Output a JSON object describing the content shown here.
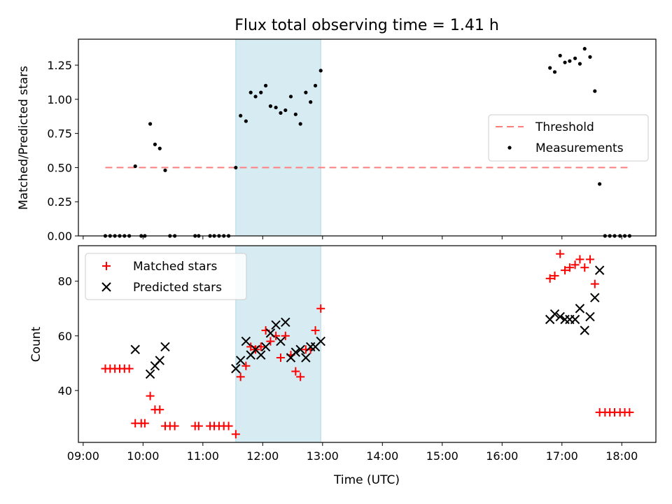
{
  "chart_data": [
    {
      "type": "scatter",
      "title": "Flux total observing time = 1.41 h",
      "xlabel": "",
      "ylabel": "Matched/Predicted stars",
      "ylim": [
        0,
        1.44
      ],
      "yticks": [
        "0.00",
        "0.25",
        "0.50",
        "0.75",
        "1.00",
        "1.25"
      ],
      "ytick_values": [
        0,
        0.25,
        0.5,
        0.75,
        1.0,
        1.25
      ],
      "shaded_span_hours": [
        11.55,
        12.97
      ],
      "threshold": {
        "name": "Threshold",
        "y": 0.5,
        "x": [
          9.37,
          18.15
        ],
        "color": "#ff7f7f"
      },
      "measurements": {
        "name": "Measurements",
        "color": "#000000",
        "x": [
          9.37,
          9.45,
          9.53,
          9.61,
          9.69,
          9.77,
          9.87,
          9.97,
          10.03,
          10.12,
          10.2,
          10.28,
          10.37,
          10.45,
          10.53,
          10.87,
          10.93,
          11.12,
          11.19,
          11.27,
          11.35,
          11.43,
          11.55,
          11.63,
          11.72,
          11.8,
          11.88,
          11.97,
          12.05,
          12.13,
          12.22,
          12.3,
          12.38,
          12.47,
          12.55,
          12.63,
          12.72,
          12.8,
          12.88,
          12.97,
          16.8,
          16.88,
          16.97,
          17.05,
          17.13,
          17.22,
          17.3,
          17.38,
          17.47,
          17.55,
          17.63,
          17.72,
          17.8,
          17.88,
          17.97,
          18.05,
          18.13
        ],
        "y": [
          0,
          0,
          0,
          0,
          0,
          0,
          0.51,
          0,
          0,
          0.82,
          0.67,
          0.64,
          0.48,
          0,
          0,
          0,
          0,
          0,
          0,
          0,
          0,
          0,
          0.5,
          0.88,
          0.84,
          1.05,
          1.02,
          1.05,
          1.1,
          0.95,
          0.94,
          0.9,
          0.92,
          1.02,
          0.89,
          0.82,
          1.05,
          0.98,
          1.1,
          1.21,
          1.23,
          1.2,
          1.32,
          1.27,
          1.28,
          1.3,
          1.26,
          1.37,
          1.31,
          1.06,
          0.38,
          0,
          0,
          0,
          0,
          0,
          0
        ]
      },
      "legend": {
        "placement": "center-right",
        "entries": [
          "Threshold",
          "Measurements"
        ]
      }
    },
    {
      "type": "scatter",
      "title": "",
      "xlabel": "Time (UTC)",
      "ylabel": "Count",
      "ylim": [
        21,
        93
      ],
      "yticks": [
        "40",
        "60",
        "80"
      ],
      "ytick_values": [
        40,
        60,
        80
      ],
      "xlim": [
        8.92,
        18.57
      ],
      "xticks": [
        "09:00",
        "10:00",
        "11:00",
        "12:00",
        "13:00",
        "14:00",
        "15:00",
        "16:00",
        "17:00",
        "18:00"
      ],
      "xtick_values": [
        9,
        10,
        11,
        12,
        13,
        14,
        15,
        16,
        17,
        18
      ],
      "shaded_span_hours": [
        11.55,
        12.97
      ],
      "series": [
        {
          "name": "Matched stars",
          "marker": "+",
          "color": "#ff0000",
          "x": [
            9.37,
            9.45,
            9.53,
            9.61,
            9.69,
            9.77,
            9.87,
            9.97,
            10.03,
            10.12,
            10.2,
            10.28,
            10.37,
            10.45,
            10.53,
            10.87,
            10.93,
            11.12,
            11.19,
            11.27,
            11.35,
            11.43,
            11.55,
            11.63,
            11.72,
            11.8,
            11.88,
            11.97,
            12.05,
            12.13,
            12.22,
            12.3,
            12.38,
            12.47,
            12.55,
            12.63,
            12.72,
            12.8,
            12.88,
            12.97,
            16.8,
            16.88,
            16.97,
            17.05,
            17.13,
            17.22,
            17.3,
            17.38,
            17.47,
            17.55,
            17.63,
            17.72,
            17.8,
            17.88,
            17.97,
            18.05,
            18.13
          ],
          "y": [
            48,
            48,
            48,
            48,
            48,
            48,
            28,
            28,
            28,
            38,
            33,
            33,
            27,
            27,
            27,
            27,
            27,
            27,
            27,
            27,
            27,
            27,
            24,
            45,
            49,
            56,
            55,
            56,
            62,
            58,
            60,
            52,
            60,
            53,
            47,
            45,
            55,
            55,
            62,
            70,
            81,
            82,
            90,
            84,
            85,
            86,
            88,
            85,
            88,
            79,
            32,
            32,
            32,
            32,
            32,
            32,
            32
          ]
        },
        {
          "name": "Predicted stars",
          "marker": "x",
          "color": "#000000",
          "x": [
            9.87,
            10.12,
            10.2,
            10.28,
            10.37,
            11.55,
            11.63,
            11.72,
            11.8,
            11.88,
            11.97,
            12.05,
            12.13,
            12.22,
            12.3,
            12.38,
            12.47,
            12.55,
            12.63,
            12.72,
            12.8,
            12.88,
            12.97,
            16.8,
            16.88,
            16.97,
            17.05,
            17.13,
            17.22,
            17.3,
            17.38,
            17.47,
            17.55,
            17.63
          ],
          "y": [
            55,
            46,
            49,
            51,
            56,
            48,
            51,
            58,
            53,
            55,
            53,
            56,
            61,
            64,
            58,
            65,
            52,
            54,
            55,
            52,
            56,
            56,
            58,
            66,
            68,
            67,
            66,
            66,
            66,
            70,
            62,
            67,
            74,
            84
          ]
        }
      ],
      "legend": {
        "placement": "top-left",
        "entries": [
          "Matched stars",
          "Predicted stars"
        ]
      }
    }
  ]
}
